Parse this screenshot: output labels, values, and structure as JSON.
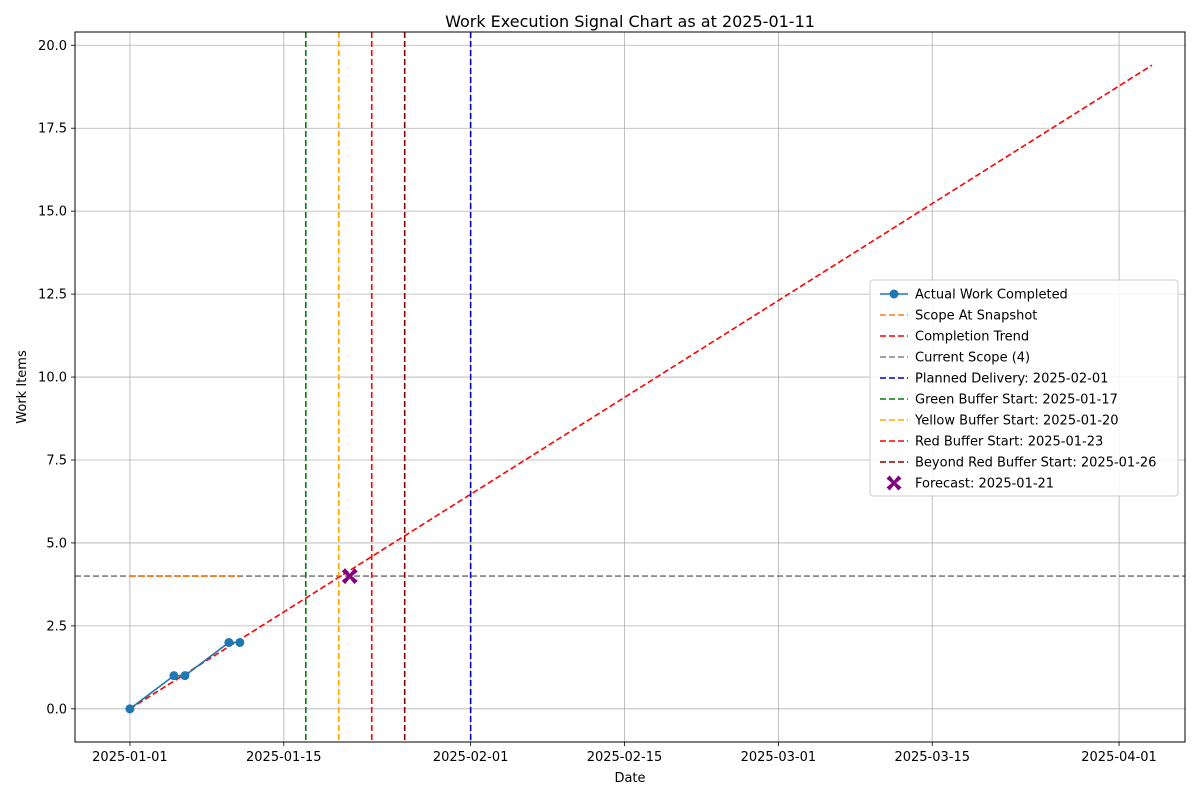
{
  "chart_data": {
    "type": "line",
    "title": "Work Execution Signal Chart as at 2025-01-11",
    "xlabel": "Date",
    "ylabel": "Work Items",
    "xlim": [
      "2024-12-27",
      "2025-04-07"
    ],
    "ylim": [
      -1,
      20.4
    ],
    "grid": true,
    "legend_position": "right",
    "x_ticks": [
      "2025-01-01",
      "2025-01-15",
      "2025-02-01",
      "2025-02-15",
      "2025-03-01",
      "2025-03-15",
      "2025-04-01"
    ],
    "y_ticks": [
      0.0,
      2.5,
      5.0,
      7.5,
      10.0,
      12.5,
      15.0,
      17.5,
      20.0
    ],
    "series": [
      {
        "name": "Actual Work Completed",
        "kind": "line-markers",
        "color": "#1f77b4",
        "x": [
          "2025-01-01",
          "2025-01-05",
          "2025-01-06",
          "2025-01-10",
          "2025-01-11"
        ],
        "y": [
          0,
          1,
          1,
          2,
          2
        ]
      },
      {
        "name": "Scope At Snapshot",
        "kind": "dashed",
        "color": "#ff7f0e",
        "x": [
          "2025-01-01",
          "2025-01-11"
        ],
        "y": [
          4,
          4
        ]
      },
      {
        "name": "Completion Trend",
        "kind": "dashed",
        "color": "#ff0000",
        "x": [
          "2025-01-01",
          "2025-04-04"
        ],
        "y": [
          0,
          19.4
        ]
      },
      {
        "name": "Current Scope (4)",
        "kind": "hline-dashed",
        "color": "#808080",
        "y": 4
      }
    ],
    "vlines": [
      {
        "name": "Planned Delivery: 2025-02-01",
        "x": "2025-02-01",
        "color": "#0000cc"
      },
      {
        "name": "Green Buffer Start: 2025-01-17",
        "x": "2025-01-17",
        "color": "#008000"
      },
      {
        "name": "Yellow Buffer Start: 2025-01-20",
        "x": "2025-01-20",
        "color": "#ffa500"
      },
      {
        "name": "Red Buffer Start: 2025-01-23",
        "x": "2025-01-23",
        "color": "#ff0000"
      },
      {
        "name": "Beyond Red Buffer Start: 2025-01-26",
        "x": "2025-01-26",
        "color": "#8b0000"
      }
    ],
    "forecast": {
      "name": "Forecast: 2025-01-21",
      "x": "2025-01-21",
      "y": 4,
      "color": "#800080"
    },
    "legend_order": [
      "Actual Work Completed",
      "Scope At Snapshot",
      "Completion Trend",
      "Current Scope (4)",
      "Planned Delivery: 2025-02-01",
      "Green Buffer Start: 2025-01-17",
      "Yellow Buffer Start: 2025-01-20",
      "Red Buffer Start: 2025-01-23",
      "Beyond Red Buffer Start: 2025-01-26",
      "Forecast: 2025-01-21"
    ]
  }
}
